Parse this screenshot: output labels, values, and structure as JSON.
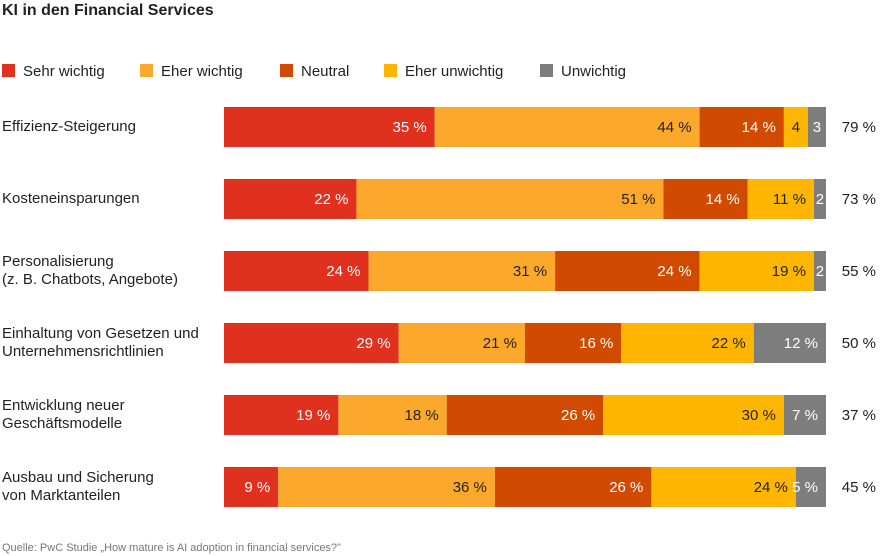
{
  "chart_data": {
    "type": "stacked-bar-horizontal",
    "title": "KI in den Financial Services",
    "source": "Quelle: PwC Studie „How mature is AI adoption in financial services?\"",
    "categories": [
      "Effizienz-Steigerung",
      "Kosteneinsparungen",
      "Personalisierung\n(z. B. Chatbots, Angebote)",
      "Einhaltung von Gesetzen und\nUnternehmensrichtlinien",
      "Entwicklung neuer\nGeschäftsmodelle",
      "Ausbau und Sicherung\nvon Marktanteilen"
    ],
    "xlim": [
      0,
      100
    ],
    "series": [
      {
        "name": "Sehr wichtig",
        "color": "#e0301e",
        "values": [
          35,
          22,
          24,
          29,
          19,
          9
        ],
        "value_labels": [
          "35 %",
          "22 %",
          "24 %",
          "29 %",
          "19 %",
          "9 %"
        ]
      },
      {
        "name": "Eher wichtig",
        "color": "#fca82c",
        "values": [
          44,
          51,
          31,
          21,
          18,
          36
        ],
        "value_labels": [
          "44 %",
          "51 %",
          "31 %",
          "21 %",
          "18 %",
          "36 %"
        ]
      },
      {
        "name": "Neutral",
        "color": "#d04a02",
        "values": [
          14,
          14,
          24,
          16,
          26,
          26
        ],
        "value_labels": [
          "14 %",
          "14 %",
          "24 %",
          "16 %",
          "26 %",
          "26 %"
        ]
      },
      {
        "name": "Eher unwichtig",
        "color": "#ffb600",
        "values": [
          4,
          11,
          19,
          22,
          30,
          24
        ],
        "value_labels": [
          "4",
          "11 %",
          "19 %",
          "22 %",
          "30 %",
          "24 %"
        ]
      },
      {
        "name": "Unwichtig",
        "color": "#7d7d7d",
        "values": [
          3,
          2,
          2,
          12,
          7,
          5
        ],
        "value_labels": [
          "3",
          "2",
          "2",
          "12 %",
          "7 %",
          "5 %"
        ]
      }
    ],
    "totals": {
      "values": [
        79,
        73,
        55,
        50,
        37,
        45
      ],
      "value_labels": [
        "79 %",
        "73 %",
        "55 %",
        "50 %",
        "37 %",
        "45 %"
      ]
    }
  }
}
